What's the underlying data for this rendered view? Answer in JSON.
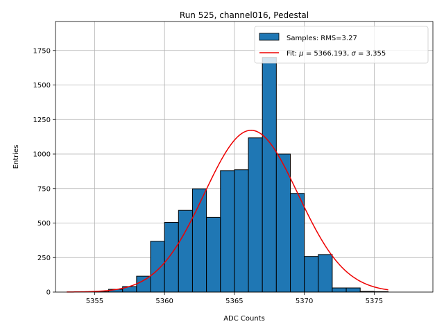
{
  "chart_data": {
    "type": "bar",
    "title": "Run 525, channel016, Pedestal",
    "xlabel": "ADC Counts",
    "ylabel": "Entries",
    "xlim": [
      5352.2,
      5379.2
    ],
    "ylim": [
      0,
      1960
    ],
    "x_ticks": [
      5355,
      5360,
      5365,
      5370,
      5375
    ],
    "y_ticks": [
      0,
      250,
      500,
      750,
      1000,
      1250,
      1500,
      1750
    ],
    "grid": true,
    "legend_position": "top-right",
    "histogram": {
      "name": "Samples: RMS=3.27",
      "color": "#1f77b4",
      "bin_width": 1,
      "bins": [
        {
          "left": 5355,
          "count": 3
        },
        {
          "left": 5356,
          "count": 20
        },
        {
          "left": 5357,
          "count": 40
        },
        {
          "left": 5358,
          "count": 115
        },
        {
          "left": 5359,
          "count": 368
        },
        {
          "left": 5360,
          "count": 505
        },
        {
          "left": 5361,
          "count": 592
        },
        {
          "left": 5362,
          "count": 748
        },
        {
          "left": 5363,
          "count": 541
        },
        {
          "left": 5364,
          "count": 880
        },
        {
          "left": 5365,
          "count": 886
        },
        {
          "left": 5366,
          "count": 1117
        },
        {
          "left": 5367,
          "count": 1700
        },
        {
          "left": 5368,
          "count": 1000
        },
        {
          "left": 5369,
          "count": 715
        },
        {
          "left": 5370,
          "count": 258
        },
        {
          "left": 5371,
          "count": 272
        },
        {
          "left": 5372,
          "count": 30
        },
        {
          "left": 5373,
          "count": 30
        },
        {
          "left": 5374,
          "count": 5
        },
        {
          "left": 5375,
          "count": 3
        }
      ]
    },
    "fit": {
      "name": "Fit: μ = 5366.193, σ = 3.355",
      "legend_parts": {
        "prefix": "Fit: ",
        "mu_symbol": "μ",
        "mu_rest": " = 5366.193, ",
        "sigma_symbol": "σ",
        "sigma_rest": " = 3.355"
      },
      "color": "#ee0000",
      "mu": 5366.193,
      "sigma": 3.355,
      "amplitude": 1172,
      "x_range": [
        5353,
        5376
      ]
    }
  }
}
